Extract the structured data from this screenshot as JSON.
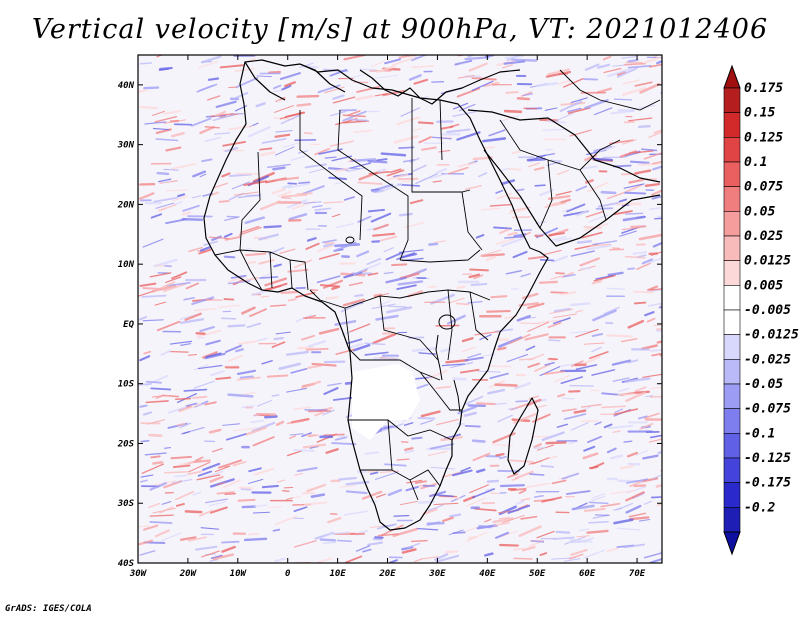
{
  "title": "Vertical velocity [m/s] at 900hPa, VT: 2021012406",
  "credit": "GrADS: IGES/COLA",
  "map": {
    "lat_labels": [
      "40N",
      "30N",
      "20N",
      "10N",
      "EQ",
      "10S",
      "20S",
      "30S",
      "40S"
    ],
    "lat_values": [
      40,
      30,
      20,
      10,
      0,
      -10,
      -20,
      -30,
      -40
    ],
    "lon_labels": [
      "30W",
      "20W",
      "10W",
      "0",
      "10E",
      "20E",
      "30E",
      "40E",
      "50E",
      "60E",
      "70E"
    ],
    "lon_values": [
      -30,
      -20,
      -10,
      0,
      10,
      20,
      30,
      40,
      50,
      60,
      70
    ],
    "lat_range": [
      -40,
      45
    ],
    "lon_range": [
      -30,
      75
    ]
  },
  "colorbar": {
    "labels": [
      "0.175",
      "0.15",
      "0.125",
      "0.1",
      "0.075",
      "0.05",
      "0.025",
      "0.0125",
      "0.005",
      "-0.005",
      "-0.0125",
      "-0.025",
      "-0.05",
      "-0.075",
      "-0.1",
      "-0.125",
      "-0.175",
      "-0.2"
    ],
    "colors": [
      "#b41e1e",
      "#d22a2a",
      "#e04444",
      "#ea6060",
      "#f07e7e",
      "#f59c9c",
      "#f9baba",
      "#fcd8d8",
      "#ffffff",
      "#ffffff",
      "#d8d8fc",
      "#babaf8",
      "#9c9cf4",
      "#7e7eee",
      "#6060e6",
      "#4444dc",
      "#2a2acc",
      "#1e1eb4"
    ],
    "top_triangle_color": "#a01010",
    "bottom_triangle_color": "#1010a0"
  }
}
